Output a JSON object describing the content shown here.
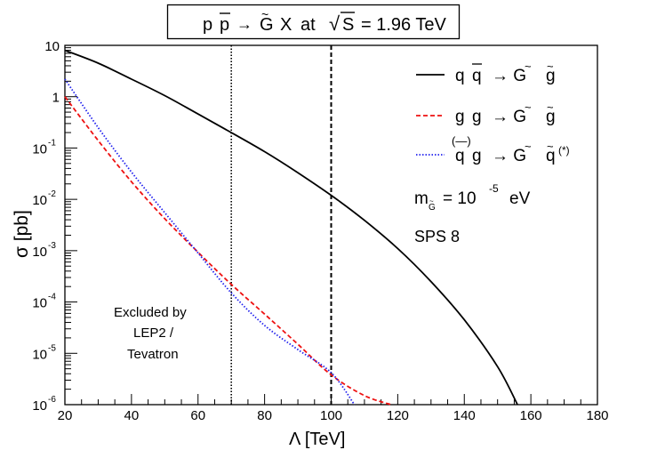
{
  "chart_data": {
    "type": "line",
    "title": "p p̅ → G̃ X at √S = 1.96 TeV",
    "title_parts": {
      "p1": "p",
      "p2": "p",
      "arrow": "→",
      "g": "G",
      "x": "X",
      "at": "at",
      "root": "√",
      "s": "S",
      "energy": "= 1.96 TeV"
    },
    "xlabel": "Λ  [TeV]",
    "ylabel": "σ [pb]",
    "xlim": [
      20,
      180
    ],
    "ylim": [
      1e-06,
      10
    ],
    "yscale": "log",
    "x_ticks": [
      20,
      40,
      60,
      80,
      100,
      120,
      140,
      160,
      180
    ],
    "y_ticks": [
      {
        "value": 10,
        "label": "10",
        "exp": ""
      },
      {
        "value": 1,
        "label": "1",
        "exp": ""
      },
      {
        "value": 0.1,
        "label": "10",
        "exp": "-1"
      },
      {
        "value": 0.01,
        "label": "10",
        "exp": "-2"
      },
      {
        "value": 0.001,
        "label": "10",
        "exp": "-3"
      },
      {
        "value": 0.0001,
        "label": "10",
        "exp": "-4"
      },
      {
        "value": 1e-05,
        "label": "10",
        "exp": "-5"
      },
      {
        "value": 1e-06,
        "label": "10",
        "exp": "-6"
      }
    ],
    "vlines": [
      {
        "x": 70,
        "style": "dotted"
      },
      {
        "x": 100,
        "style": "dashed"
      }
    ],
    "series": [
      {
        "name": "q q̅ → G̃ g̃",
        "color": "#000000",
        "dash": "",
        "x": [
          20,
          30,
          40,
          50,
          60,
          70,
          80,
          90,
          100,
          110,
          120,
          130,
          140,
          150,
          156
        ],
        "values": [
          8,
          4.5,
          2.2,
          1.05,
          0.46,
          0.2,
          0.085,
          0.033,
          0.012,
          0.0039,
          0.0011,
          0.00025,
          4.5e-05,
          5.5e-06,
          1e-06
        ]
      },
      {
        "name": "g g → G̃ g̃",
        "color": "#ee1111",
        "dash": "5,3",
        "x": [
          20,
          30,
          40,
          50,
          60,
          70,
          80,
          90,
          100,
          110,
          118
        ],
        "values": [
          1.0,
          0.14,
          0.022,
          0.0042,
          0.00093,
          0.00022,
          5.8e-05,
          1.5e-05,
          3.8e-06,
          1.5e-06,
          1e-06
        ]
      },
      {
        "name": "q(—)g → G̃ q̃(*)",
        "color": "#2222ee",
        "dash": "1.5,2",
        "x": [
          20,
          30,
          40,
          50,
          60,
          70,
          80,
          90,
          100,
          107
        ],
        "values": [
          2.2,
          0.25,
          0.034,
          0.0055,
          0.0009,
          0.00015,
          3.5e-05,
          1.18e-05,
          4.2e-06,
          1e-06
        ]
      }
    ],
    "legend": {
      "placement": "top-right",
      "entries": [
        {
          "a": "q",
          "b": "q",
          "rest": "→ G",
          "c": "g",
          "sup": ""
        },
        {
          "a": "g",
          "b": "g",
          "rest": "→ G",
          "c": "g",
          "sup": ""
        },
        {
          "a": "q",
          "b": "g",
          "rest": "→ G",
          "c": "q",
          "sup": "(*)"
        }
      ]
    },
    "annotations": {
      "mass_prefix": "m",
      "mass_sub": "G",
      "mass_eq": "= 10",
      "mass_exp": "-5",
      "mass_unit": "eV",
      "scenario": "SPS 8",
      "excluded_1": "Excluded by",
      "excluded_2": "LEP2 /",
      "excluded_3": "Tevatron"
    }
  }
}
